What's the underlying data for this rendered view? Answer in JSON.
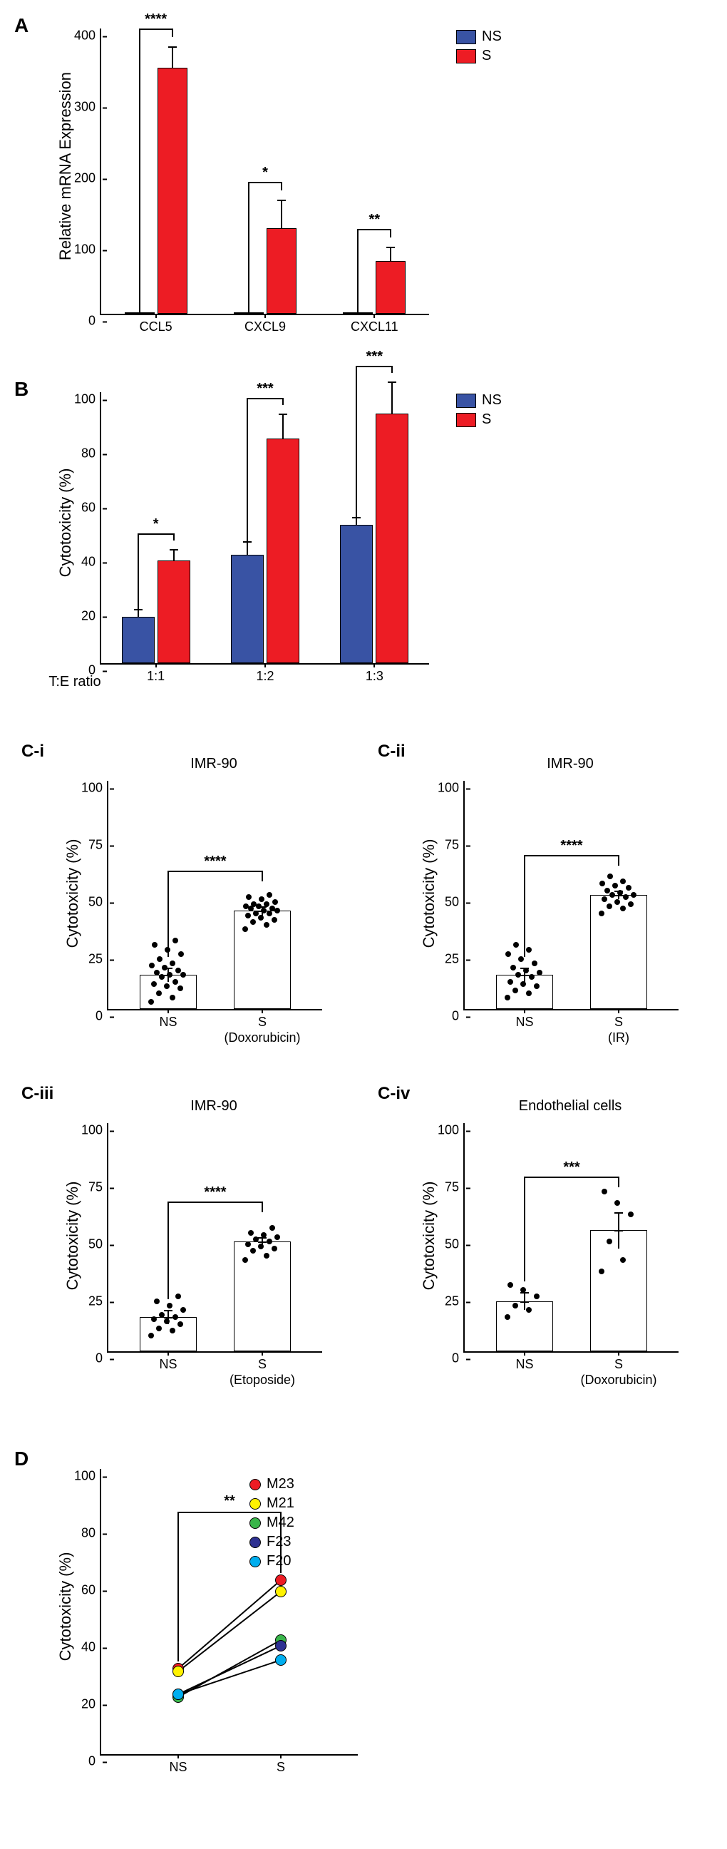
{
  "colors": {
    "ns": "#3953a4",
    "s": "#ed1c24",
    "black": "#000000",
    "white": "#ffffff"
  },
  "panelA": {
    "label": "A",
    "yTitle": "Relative mRNA Expression",
    "yMax": 400,
    "yStep": 100,
    "categories": [
      "CCL5",
      "CXCL9",
      "CXCL11"
    ],
    "ns": [
      2,
      2,
      2
    ],
    "s": [
      345,
      120,
      74
    ],
    "sErr": [
      30,
      40,
      20
    ],
    "sig": [
      "****",
      "*",
      "**"
    ],
    "legend": [
      {
        "label": "NS",
        "colorKey": "ns"
      },
      {
        "label": "S",
        "colorKey": "s"
      }
    ]
  },
  "panelB": {
    "label": "B",
    "yTitle": "Cytotoxicity (%)",
    "xTitle": "T:E ratio",
    "yMax": 100,
    "yStep": 20,
    "categories": [
      "1:1",
      "1:2",
      "1:3"
    ],
    "ns": [
      17,
      40,
      51
    ],
    "s": [
      38,
      83,
      92
    ],
    "nsErr": [
      3,
      5,
      3
    ],
    "sErr": [
      4,
      9,
      12
    ],
    "sig": [
      "*",
      "***",
      "***"
    ],
    "legend": [
      {
        "label": "NS",
        "colorKey": "ns"
      },
      {
        "label": "S",
        "colorKey": "s"
      }
    ]
  },
  "panelC": {
    "charts": [
      {
        "id": "C-i",
        "title": "IMR-90",
        "yTitle": "Cytotoxicity (%)",
        "yMax": 100,
        "yStep": 25,
        "groups": [
          "NS",
          "S\n(Doxorubicin)"
        ],
        "means": [
          15,
          43
        ],
        "errs": [
          3,
          2
        ],
        "sig": "****",
        "points": {
          "NS": [
            3,
            5,
            7,
            9,
            10,
            11,
            12,
            14,
            15,
            15,
            16,
            17,
            18,
            19,
            20,
            22,
            24,
            26,
            28,
            30
          ],
          "S": [
            35,
            37,
            38,
            39,
            40,
            41,
            42,
            42,
            43,
            43,
            44,
            44,
            45,
            45,
            46,
            46,
            47,
            48,
            49,
            50
          ]
        }
      },
      {
        "id": "C-ii",
        "title": "IMR-90",
        "yTitle": "Cytotoxicity (%)",
        "yMax": 100,
        "yStep": 25,
        "groups": [
          "NS",
          "S\n(IR)"
        ],
        "means": [
          15,
          50
        ],
        "errs": [
          3,
          2
        ],
        "sig": "****",
        "points": {
          "NS": [
            5,
            7,
            8,
            10,
            11,
            12,
            14,
            15,
            16,
            17,
            18,
            20,
            22,
            24,
            26,
            28
          ],
          "S": [
            42,
            44,
            45,
            46,
            47,
            48,
            49,
            50,
            50,
            51,
            52,
            53,
            54,
            55,
            56,
            58
          ]
        }
      },
      {
        "id": "C-iii",
        "title": "IMR-90",
        "yTitle": "Cytotoxicity (%)",
        "yMax": 100,
        "yStep": 25,
        "groups": [
          "NS",
          "S\n(Etoposide)"
        ],
        "means": [
          15,
          48
        ],
        "errs": [
          3,
          2
        ],
        "sig": "****",
        "points": {
          "NS": [
            7,
            9,
            10,
            12,
            13,
            14,
            15,
            16,
            18,
            20,
            22,
            24
          ],
          "S": [
            40,
            42,
            44,
            45,
            46,
            47,
            48,
            49,
            50,
            51,
            52,
            54
          ]
        }
      },
      {
        "id": "C-iv",
        "title": "Endothelial cells",
        "yTitle": "Cytotoxicity (%)",
        "yMax": 100,
        "yStep": 25,
        "groups": [
          "NS",
          "S\n(Doxorubicin)"
        ],
        "means": [
          22,
          53
        ],
        "errs": [
          4,
          8
        ],
        "sig": "***",
        "points": {
          "NS": [
            15,
            18,
            20,
            24,
            27,
            29
          ],
          "S": [
            35,
            40,
            48,
            60,
            65,
            70
          ]
        }
      }
    ]
  },
  "panelD": {
    "label": "D",
    "yTitle": "Cytotoxicity (%)",
    "yMax": 100,
    "yStep": 20,
    "categories": [
      "NS",
      "S"
    ],
    "sig": "**",
    "series": [
      {
        "label": "M23",
        "color": "#ed1c24",
        "values": [
          30,
          61
        ]
      },
      {
        "label": "M21",
        "color": "#fff200",
        "values": [
          29,
          57
        ]
      },
      {
        "label": "M42",
        "color": "#39b54a",
        "values": [
          20,
          40
        ]
      },
      {
        "label": "F23",
        "color": "#2e3192",
        "values": [
          21,
          38
        ]
      },
      {
        "label": "F20",
        "color": "#00aeef",
        "values": [
          21,
          33
        ]
      }
    ]
  }
}
